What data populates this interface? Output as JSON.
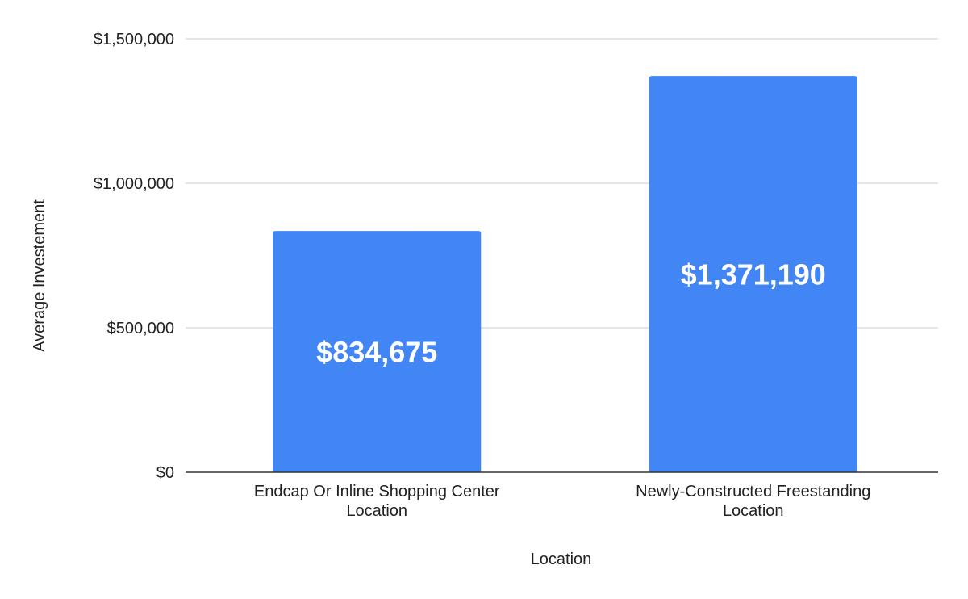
{
  "chart_data": {
    "type": "bar",
    "categories": [
      [
        "Endcap Or Inline Shopping Center",
        "Location"
      ],
      [
        "Newly-Constructed Freestanding",
        "Location"
      ]
    ],
    "values": [
      834675,
      1371190
    ],
    "data_labels": [
      "$834,675",
      "$1,371,190"
    ],
    "xlabel": "Location",
    "ylabel": "Average Investement",
    "ylim": [
      0,
      1500000
    ],
    "yticks": [
      0,
      500000,
      1000000,
      1500000
    ],
    "ytick_labels": [
      "$0",
      "$500,000",
      "$1,000,000",
      "$1,500,000"
    ],
    "grid": true,
    "bar_color": "#4285f4",
    "label_color": "#ffffff"
  }
}
